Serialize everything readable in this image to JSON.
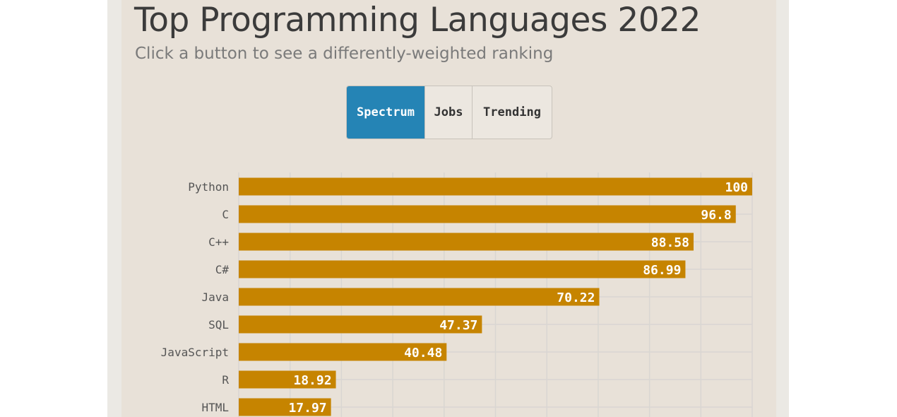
{
  "header": {
    "title": "Top Programming Languages 2022",
    "subtitle": "Click a button to see a differently-weighted ranking"
  },
  "buttons": [
    {
      "label": "Spectrum",
      "active": true
    },
    {
      "label": "Jobs",
      "active": false
    },
    {
      "label": "Trending",
      "active": false
    }
  ],
  "colors": {
    "bar": "#c68400",
    "active_button": "#2584b5",
    "grid": "#d9d6d2"
  },
  "chart_data": {
    "type": "bar",
    "orientation": "horizontal",
    "categories": [
      "Python",
      "C",
      "C++",
      "C#",
      "Java",
      "SQL",
      "JavaScript",
      "R",
      "HTML"
    ],
    "values": [
      100,
      96.8,
      88.58,
      86.99,
      70.22,
      47.37,
      40.48,
      18.92,
      17.97
    ],
    "xlim": [
      0,
      100
    ],
    "grid": true,
    "value_labels": true
  }
}
